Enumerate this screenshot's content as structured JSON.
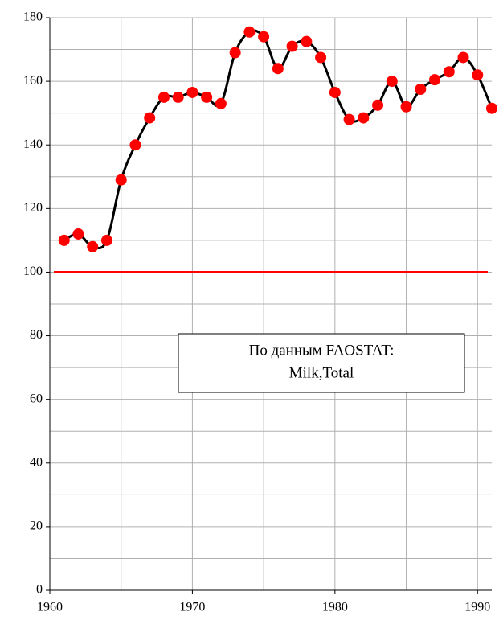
{
  "chart_data": {
    "type": "line",
    "x": [
      1961,
      1962,
      1963,
      1964,
      1965,
      1966,
      1967,
      1968,
      1969,
      1970,
      1971,
      1972,
      1973,
      1974,
      1975,
      1976,
      1977,
      1978,
      1979,
      1980,
      1981,
      1982,
      1983,
      1984,
      1985,
      1986,
      1987,
      1988,
      1989,
      1990,
      1991
    ],
    "series": [
      {
        "color": "#000000",
        "marker_color": "#ff0000",
        "values": [
          110,
          112,
          108,
          110,
          129,
          140,
          148.5,
          155,
          155,
          156.5,
          155,
          153,
          169,
          175.5,
          174,
          164,
          171,
          172.5,
          167.5,
          156.5,
          148,
          148.5,
          152.5,
          160,
          152,
          157.5,
          160.5,
          163,
          167.5,
          162,
          151.5
        ]
      }
    ],
    "reference_line": {
      "value": 100,
      "color": "#ff0000"
    },
    "annotation": [
      "По данным FAOSTAT:",
      "Milk,Total"
    ],
    "xlim": [
      1960,
      1991
    ],
    "xticks": [
      1960,
      1970,
      1980,
      1990
    ],
    "x_minor_ticks": [
      1965,
      1975,
      1985
    ],
    "ylim": [
      0,
      180
    ],
    "yticks": [
      0,
      20,
      40,
      60,
      80,
      100,
      120,
      140,
      160,
      180
    ],
    "y_minor_ticks": [
      10,
      30,
      50,
      70,
      90,
      110,
      130,
      150,
      170
    ],
    "grid": true
  }
}
